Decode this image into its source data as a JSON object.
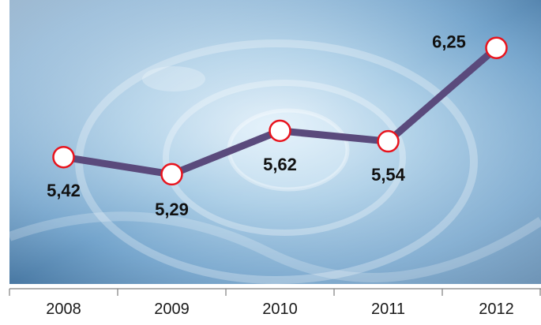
{
  "chart_data": {
    "type": "line",
    "categories": [
      "2008",
      "2009",
      "2010",
      "2011",
      "2012"
    ],
    "values": [
      5.42,
      5.29,
      5.62,
      5.54,
      6.25
    ],
    "value_labels": [
      "5,42",
      "5,29",
      "5,62",
      "5,54",
      "6,25"
    ],
    "ylim": [
      4.9,
      6.35
    ],
    "grid": false,
    "legend": "none",
    "colors": {
      "line": "#5a4a7c",
      "marker_fill": "#ffffff",
      "marker_stroke": "#e8141e",
      "axis": "#7f7f7f",
      "background_light": "#cfe6f4",
      "background_mid": "#7fb3d6",
      "background_dark": "#3d6f9c"
    }
  }
}
